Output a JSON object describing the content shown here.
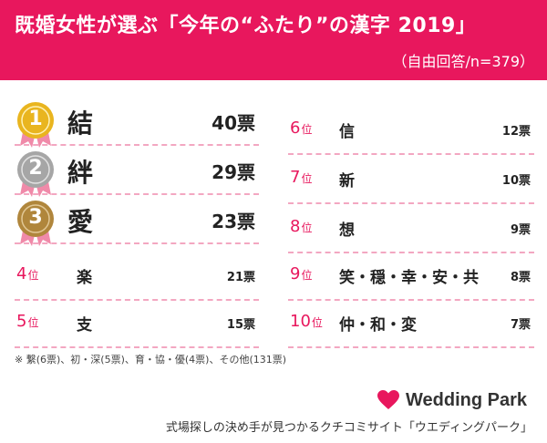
{
  "header": {
    "title": "既婚女性が選ぶ「今年の“ふたり”の漢字 2019」",
    "subtitle": "（自由回答/n=379）"
  },
  "left_ranking": [
    {
      "rank": "1",
      "kanji": "結",
      "votes": "40票",
      "medal": "gold"
    },
    {
      "rank": "2",
      "kanji": "絆",
      "votes": "29票",
      "medal": "silver"
    },
    {
      "rank": "3",
      "kanji": "愛",
      "votes": "23票",
      "medal": "bronze"
    },
    {
      "rank": "4",
      "rank_unit": "位",
      "kanji": "楽",
      "votes": "21票"
    },
    {
      "rank": "5",
      "rank_unit": "位",
      "kanji": "支",
      "votes": "15票"
    }
  ],
  "right_ranking": [
    {
      "rank": "6",
      "rank_unit": "位",
      "kanji": "信",
      "votes": "12票"
    },
    {
      "rank": "7",
      "rank_unit": "位",
      "kanji": "新",
      "votes": "10票"
    },
    {
      "rank": "8",
      "rank_unit": "位",
      "kanji": "想",
      "votes": "9票"
    },
    {
      "rank": "9",
      "rank_unit": "位",
      "kanji": "笑・穏・幸・安・共",
      "votes": "8票"
    },
    {
      "rank": "10",
      "rank_unit": "位",
      "kanji": "仲・和・変",
      "votes": "7票"
    }
  ],
  "footnote": "※ 繋(6票)、初・深(5票)、育・協・優(4票)、その他(131票)",
  "brand": {
    "name": "Wedding Park",
    "icon": "heart-icon",
    "tagline": "式場探しの決め手が見つかるクチコミサイト「ウエディングパーク」"
  },
  "colors": {
    "accent": "#e8175d",
    "dashed_line": "#f3a7c1",
    "gold": "#e9b51f",
    "silver": "#a6a6a6",
    "bronze": "#b0863c"
  }
}
